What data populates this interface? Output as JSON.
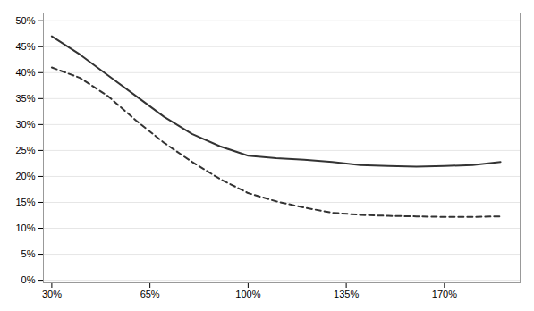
{
  "chart_data": {
    "type": "line",
    "x": [
      0.3,
      0.4,
      0.5,
      0.6,
      0.7,
      0.8,
      0.9,
      1.0,
      1.1,
      1.2,
      1.3,
      1.4,
      1.5,
      1.6,
      1.7,
      1.8,
      1.9
    ],
    "series": [
      {
        "color": "#333333",
        "line_style": "solid",
        "values": [
          0.47,
          0.435,
          0.395,
          0.355,
          0.315,
          0.282,
          0.258,
          0.24,
          0.235,
          0.232,
          0.228,
          0.222,
          0.22,
          0.219,
          0.22,
          0.222,
          0.228
        ]
      },
      {
        "color": "#333333",
        "line_style": "dashed",
        "values": [
          0.41,
          0.39,
          0.355,
          0.308,
          0.265,
          0.228,
          0.195,
          0.168,
          0.152,
          0.14,
          0.13,
          0.126,
          0.124,
          0.123,
          0.122,
          0.122,
          0.123
        ]
      }
    ],
    "xlim": [
      0.27,
      1.97
    ],
    "ylim": [
      -0.005,
      0.515
    ],
    "xticks": [
      {
        "value": 0.3,
        "label": "30%"
      },
      {
        "value": 0.65,
        "label": "65%"
      },
      {
        "value": 1.0,
        "label": "100%"
      },
      {
        "value": 1.35,
        "label": "135%"
      },
      {
        "value": 1.7,
        "label": "170%"
      }
    ],
    "yticks": [
      {
        "value": 0.0,
        "label": "0%"
      },
      {
        "value": 0.05,
        "label": "5%"
      },
      {
        "value": 0.1,
        "label": "10%"
      },
      {
        "value": 0.15,
        "label": "15%"
      },
      {
        "value": 0.2,
        "label": "20%"
      },
      {
        "value": 0.25,
        "label": "25%"
      },
      {
        "value": 0.3,
        "label": "30%"
      },
      {
        "value": 0.35,
        "label": "35%"
      },
      {
        "value": 0.4,
        "label": "40%"
      },
      {
        "value": 0.45,
        "label": "45%"
      },
      {
        "value": 0.5,
        "label": "50%"
      }
    ],
    "grid": true
  }
}
